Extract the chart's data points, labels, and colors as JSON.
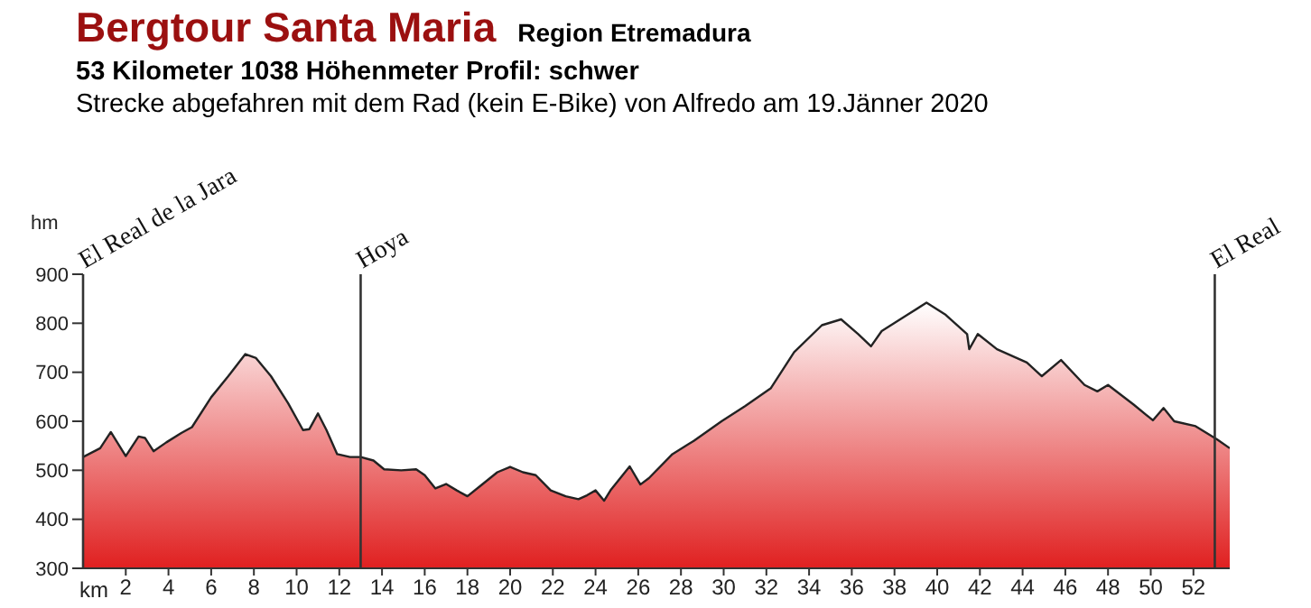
{
  "chart_data": {
    "type": "area",
    "title": "Bergtour Santa Maria",
    "subtitle": "Region Etremadura",
    "annotations": [
      "53 Kilometer  1038 Höhenmeter  Profil: schwer",
      "Strecke abgefahren mit dem Rad (kein E-Bike) von Alfredo am 19.Jänner 2020"
    ],
    "xlabel": "km",
    "ylabel": "hm",
    "x": [
      0,
      0.8,
      1.3,
      1.6,
      2.0,
      2.6,
      2.9,
      3.3,
      3.9,
      4.6,
      5.1,
      6.0,
      6.8,
      7.6,
      8.1,
      8.8,
      9.6,
      10.3,
      10.6,
      11.0,
      11.4,
      11.9,
      12.5,
      13.0,
      13.6,
      14.1,
      14.9,
      15.6,
      16.0,
      16.5,
      17.0,
      17.5,
      18.0,
      18.6,
      19.4,
      20.0,
      20.6,
      21.2,
      21.9,
      22.6,
      23.2,
      23.6,
      24.0,
      24.4,
      24.7,
      25.6,
      26.1,
      26.5,
      27.6,
      28.6,
      29.9,
      31.0,
      32.2,
      33.3,
      34.6,
      35.5,
      36.3,
      36.9,
      37.4,
      38.6,
      39.5,
      40.4,
      41.4,
      41.5,
      41.9,
      42.8,
      44.2,
      44.9,
      45.8,
      46.9,
      47.5,
      48.0,
      49.2,
      50.1,
      50.6,
      51.1,
      52.1,
      53.1,
      53.7
    ],
    "series": [
      {
        "color": "#e02020",
        "values": [
          527,
          545,
          578,
          557,
          529,
          569,
          566,
          539,
          557,
          576,
          588,
          649,
          692,
          737,
          729,
          692,
          637,
          582,
          584,
          616,
          582,
          533,
          527,
          527,
          520,
          502,
          500,
          502,
          490,
          463,
          472,
          459,
          447,
          468,
          496,
          507,
          496,
          490,
          459,
          447,
          441,
          449,
          459,
          438,
          459,
          508,
          471,
          484,
          533,
          560,
          600,
          631,
          667,
          741,
          796,
          808,
          778,
          753,
          784,
          817,
          842,
          817,
          778,
          747,
          778,
          747,
          720,
          692,
          725,
          674,
          661,
          674,
          634,
          602,
          627,
          600,
          590,
          563,
          545
        ]
      }
    ],
    "xlim": [
      0,
      53.7
    ],
    "xticks": [
      2,
      4,
      6,
      8,
      10,
      12,
      14,
      16,
      18,
      20,
      22,
      24,
      26,
      28,
      30,
      32,
      34,
      36,
      38,
      40,
      42,
      44,
      46,
      48,
      50,
      52
    ],
    "ylim": [
      300,
      900
    ],
    "yticks": [
      300,
      400,
      500,
      600,
      700,
      800,
      900
    ],
    "ref_lines": [
      {
        "axis": "x",
        "value": 0,
        "label": "El Real de la Jara"
      },
      {
        "axis": "x",
        "value": 13,
        "label": "Hoya"
      },
      {
        "axis": "x",
        "value": 53,
        "label": "El Real"
      }
    ]
  }
}
